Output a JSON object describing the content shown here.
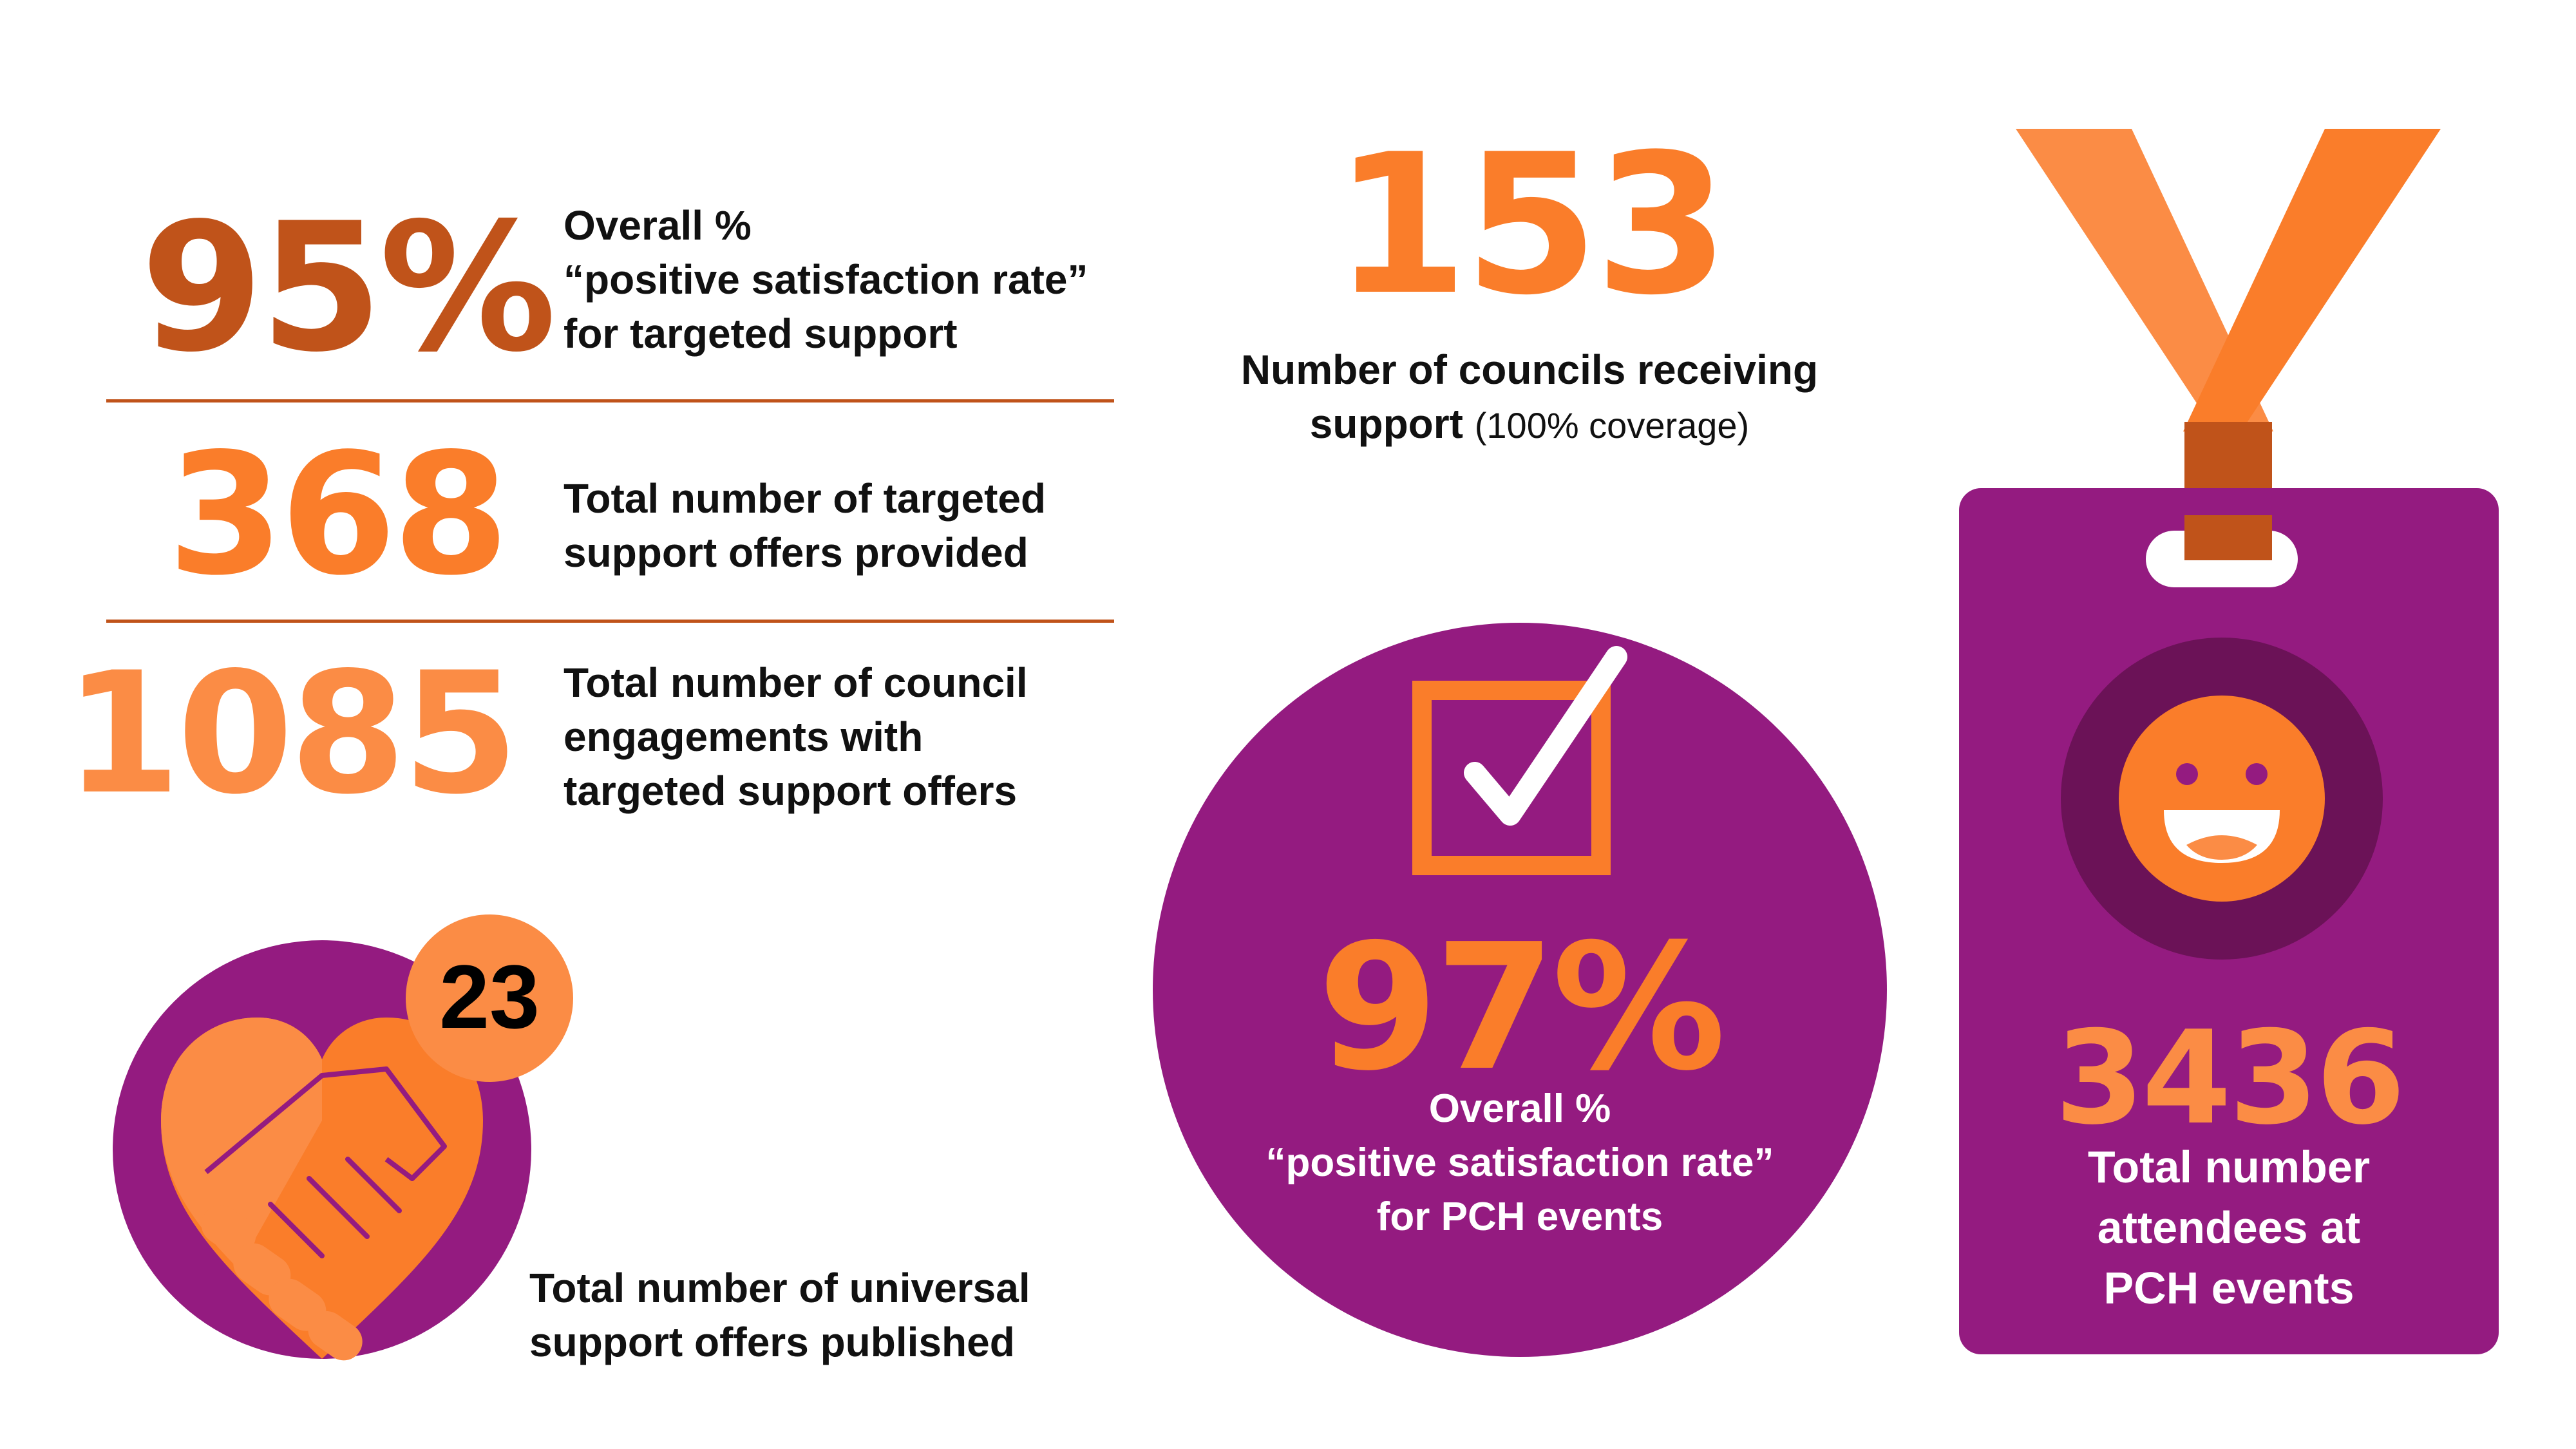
{
  "colors": {
    "dark_orange": "#c0531a",
    "orange": "#fa7d2a",
    "light_orange": "#fb8c45",
    "purple": "#941b80",
    "dark_purple": "#6b1257",
    "white": "#ffffff"
  },
  "stats_left": [
    {
      "value": "95%",
      "lines": [
        "Overall %",
        "“positive satisfaction rate”",
        "for targeted support"
      ]
    },
    {
      "value": "368",
      "lines": [
        "Total number of targeted",
        "support offers provided"
      ]
    },
    {
      "value": "1085",
      "lines": [
        "Total number of council",
        "engagements with",
        "targeted support offers"
      ]
    }
  ],
  "councils": {
    "value": "153",
    "line1": "Number of councils receiving",
    "line2_bold": "support",
    "line2_light": "(100% coverage)"
  },
  "universal": {
    "value": "23",
    "icon": "handshake-heart-icon",
    "lines": [
      "Total number of universal",
      "support offers published"
    ]
  },
  "pch_satisfaction": {
    "value": "97%",
    "icon": "checkbox-tick-icon",
    "lines": [
      "Overall %",
      "“positive satisfaction rate”",
      "for PCH events"
    ]
  },
  "pch_attendees": {
    "value": "3436",
    "icon": "smiley-face-icon",
    "lines": [
      "Total number",
      "attendees at",
      "PCH events"
    ]
  }
}
